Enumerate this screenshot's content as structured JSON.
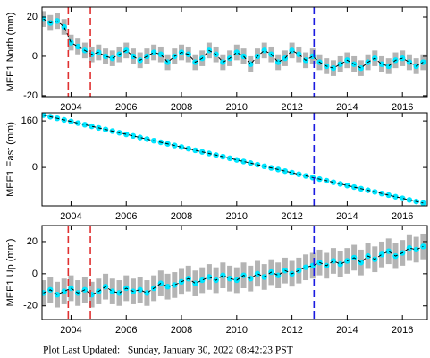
{
  "chart_data": [
    {
      "type": "scatter",
      "ylabel": "MEE1 North (mm)",
      "color": "#00e5ff",
      "error_color": "#b4b4b4",
      "error": 4,
      "trend_line": true,
      "x": [
        2003.0,
        2003.25,
        2003.5,
        2003.75,
        2004.0,
        2004.25,
        2004.5,
        2004.75,
        2005.0,
        2005.25,
        2005.5,
        2005.75,
        2006.0,
        2006.25,
        2006.5,
        2006.75,
        2007.0,
        2007.25,
        2007.5,
        2007.75,
        2008.0,
        2008.25,
        2008.5,
        2008.75,
        2009.0,
        2009.25,
        2009.5,
        2009.75,
        2010.0,
        2010.25,
        2010.5,
        2010.75,
        2011.0,
        2011.25,
        2011.5,
        2011.75,
        2012.0,
        2012.25,
        2012.5,
        2012.75,
        2013.0,
        2013.25,
        2013.5,
        2013.75,
        2014.0,
        2014.25,
        2014.5,
        2014.75,
        2015.0,
        2015.25,
        2015.5,
        2015.75,
        2016.0,
        2016.25,
        2016.5,
        2016.75
      ],
      "values": [
        19,
        17,
        18,
        15,
        7,
        5,
        3,
        1,
        2,
        0,
        -1,
        1,
        3,
        0,
        -2,
        0,
        2,
        1,
        -3,
        0,
        2,
        1,
        -3,
        -1,
        3,
        1,
        -3,
        -1,
        2,
        0,
        -4,
        0,
        3,
        1,
        -3,
        -1,
        3,
        1,
        -2,
        0,
        -3,
        -5,
        -6,
        -4,
        -2,
        -4,
        -6,
        -3,
        -1,
        -4,
        -5,
        -2,
        -1,
        -3,
        -5,
        -3
      ],
      "xlim": [
        2002.95,
        2016.9
      ],
      "xticks": [
        2004,
        2006,
        2008,
        2010,
        2012,
        2014,
        2016
      ],
      "ylim": [
        -20.5,
        25
      ],
      "yticks": [
        -20,
        0,
        20
      ],
      "events": [
        {
          "x": 2003.9,
          "color": "#e03030"
        },
        {
          "x": 2004.7,
          "color": "#e03030"
        },
        {
          "x": 2012.8,
          "color": "#1a1ae0"
        }
      ]
    },
    {
      "type": "scatter",
      "ylabel": "MEE1 East (mm)",
      "color": "#00e5ff",
      "error_color": "#b4b4b4",
      "error": 3,
      "trend_line": true,
      "x": [
        2003.0,
        2003.25,
        2003.5,
        2003.75,
        2004.0,
        2004.25,
        2004.5,
        2004.75,
        2005.0,
        2005.25,
        2005.5,
        2005.75,
        2006.0,
        2006.25,
        2006.5,
        2006.75,
        2007.0,
        2007.25,
        2007.5,
        2007.75,
        2008.0,
        2008.25,
        2008.5,
        2008.75,
        2009.0,
        2009.25,
        2009.5,
        2009.75,
        2010.0,
        2010.25,
        2010.5,
        2010.75,
        2011.0,
        2011.25,
        2011.5,
        2011.75,
        2012.0,
        2012.25,
        2012.5,
        2012.75,
        2013.0,
        2013.25,
        2013.5,
        2013.75,
        2014.0,
        2014.25,
        2014.5,
        2014.75,
        2015.0,
        2015.25,
        2015.5,
        2015.75,
        2016.0,
        2016.25,
        2016.5,
        2016.75
      ],
      "values": [
        180,
        174.5,
        169,
        163.5,
        158,
        152.5,
        147,
        141.5,
        136,
        130.5,
        125,
        119.5,
        114,
        108.5,
        103,
        97.5,
        92,
        86.5,
        81,
        75.5,
        70,
        64.5,
        59,
        53.5,
        48,
        42.5,
        37,
        31.5,
        26,
        20.5,
        15,
        9.5,
        4,
        -1.5,
        -7,
        -12.5,
        -18,
        -23.5,
        -29,
        -34.5,
        -40,
        -45.5,
        -51,
        -56.5,
        -62,
        -67.5,
        -73,
        -78.5,
        -84,
        -89.5,
        -95,
        -100.5,
        -106,
        -111.5,
        -117,
        -122.5
      ],
      "xlim": [
        2002.95,
        2016.9
      ],
      "xticks": [
        2004,
        2006,
        2008,
        2010,
        2012,
        2014,
        2016
      ],
      "ylim": [
        -132,
        188
      ],
      "yticks": [
        0,
        160
      ],
      "events": [
        {
          "x": 2012.8,
          "color": "#1a1ae0"
        }
      ]
    },
    {
      "type": "scatter",
      "ylabel": "MEE1 Up (mm)",
      "color": "#00e5ff",
      "error_color": "#b4b4b4",
      "error": 8,
      "trend_line": true,
      "x": [
        2003.0,
        2003.25,
        2003.5,
        2003.75,
        2004.0,
        2004.25,
        2004.5,
        2004.75,
        2005.0,
        2005.25,
        2005.5,
        2005.75,
        2006.0,
        2006.25,
        2006.5,
        2006.75,
        2007.0,
        2007.25,
        2007.5,
        2007.75,
        2008.0,
        2008.25,
        2008.5,
        2008.75,
        2009.0,
        2009.25,
        2009.5,
        2009.75,
        2010.0,
        2010.25,
        2010.5,
        2010.75,
        2011.0,
        2011.25,
        2011.5,
        2011.75,
        2012.0,
        2012.25,
        2012.5,
        2012.75,
        2013.0,
        2013.25,
        2013.5,
        2013.75,
        2014.0,
        2014.25,
        2014.5,
        2014.75,
        2015.0,
        2015.25,
        2015.5,
        2015.75,
        2016.0,
        2016.25,
        2016.5,
        2016.75
      ],
      "values": [
        -12,
        -10,
        -13,
        -11,
        -9,
        -12,
        -10,
        -13,
        -11,
        -8,
        -11,
        -12,
        -9,
        -11,
        -10,
        -12,
        -9,
        -6,
        -8,
        -7,
        -5,
        -3,
        -6,
        -4,
        -2,
        -4,
        -1,
        -3,
        -4,
        -1,
        -3,
        0,
        -2,
        1,
        -1,
        2,
        0,
        2,
        4,
        5,
        7,
        5,
        8,
        6,
        8,
        10,
        7,
        11,
        9,
        12,
        14,
        11,
        13,
        16,
        15,
        17
      ],
      "xlim": [
        2002.95,
        2016.9
      ],
      "xticks": [
        2004,
        2006,
        2008,
        2010,
        2012,
        2014,
        2016
      ],
      "ylim": [
        -28.5,
        30
      ],
      "yticks": [
        -20,
        0,
        20
      ],
      "events": [
        {
          "x": 2003.9,
          "color": "#e03030"
        },
        {
          "x": 2004.7,
          "color": "#e03030"
        },
        {
          "x": 2012.8,
          "color": "#1a1ae0"
        }
      ]
    }
  ],
  "footer": "Plot Last Updated:   Sunday, January 30, 2022 08:42:23 PST"
}
